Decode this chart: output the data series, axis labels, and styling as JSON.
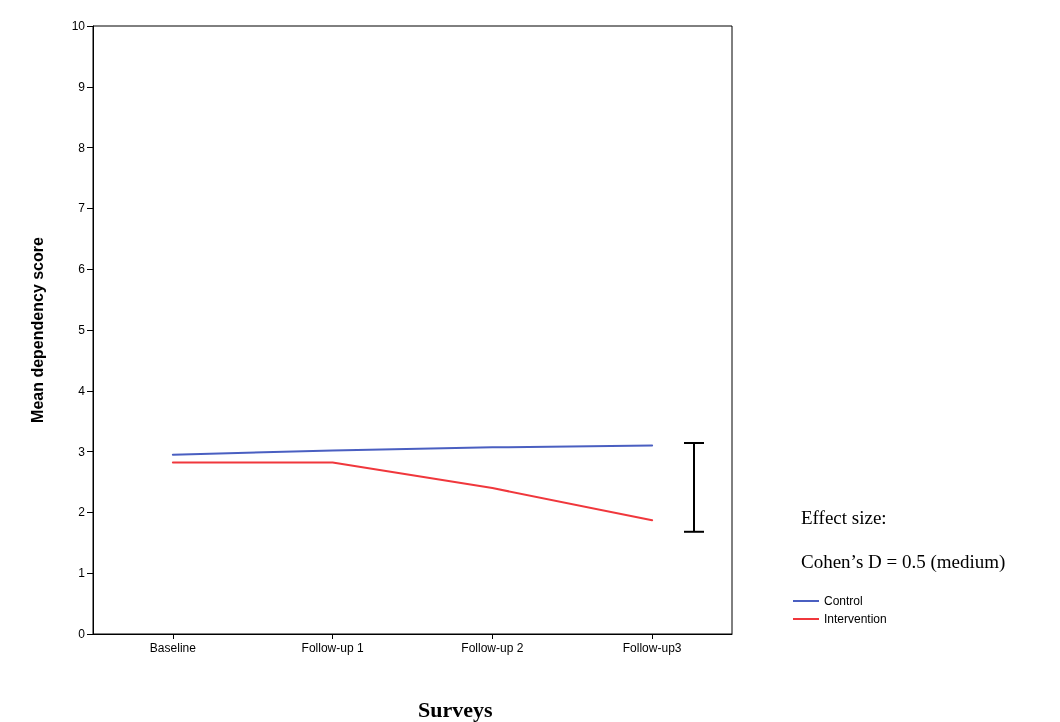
{
  "chart_data": {
    "type": "line",
    "ylabel": "Mean dependency score",
    "xlabel": "Surveys",
    "categories": [
      "Baseline",
      "Follow-up 1",
      "Follow-up 2",
      "Follow-up3"
    ],
    "series": [
      {
        "name": "Control",
        "color": "#4a5fc1",
        "values": [
          2.95,
          3.02,
          3.07,
          3.1
        ]
      },
      {
        "name": "Intervention",
        "color": "#f0373c",
        "values": [
          2.82,
          2.82,
          2.4,
          1.87
        ]
      }
    ],
    "ylim": [
      0,
      10
    ],
    "yticks": [
      0,
      1,
      2,
      3,
      4,
      5,
      6,
      7,
      8,
      9,
      10
    ],
    "grid": false,
    "legend": "right",
    "marker": "none",
    "line_style": "solid",
    "annotations": [
      "Effect size:",
      "Cohen’s D = 0.5 (medium)"
    ]
  }
}
